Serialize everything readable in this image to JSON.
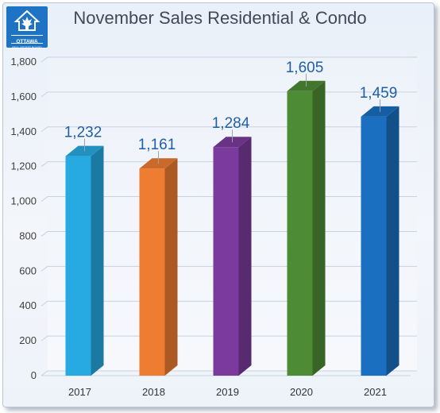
{
  "logo": {
    "wordmark": "OTTAWA",
    "tagline": "REAL ESTATE BOARD",
    "color": "#1e73c5"
  },
  "chart_data": {
    "type": "bar",
    "title": "November Sales Residential & Condo",
    "xlabel": "",
    "ylabel": "",
    "categories": [
      "2017",
      "2018",
      "2019",
      "2020",
      "2021"
    ],
    "values": [
      1232,
      1161,
      1284,
      1605,
      1459
    ],
    "value_labels": [
      "1,232",
      "1,161",
      "1,284",
      "1,605",
      "1,459"
    ],
    "colors": [
      "#27aae1",
      "#ee7d31",
      "#7a3b9c",
      "#4e8b35",
      "#1a6fc0"
    ],
    "ylim": [
      0,
      1800
    ],
    "yticks": [
      0,
      200,
      400,
      600,
      800,
      1000,
      1200,
      1400,
      1600,
      1800
    ],
    "ytick_labels": [
      "0",
      "200",
      "400",
      "600",
      "800",
      "1,000",
      "1,200",
      "1,400",
      "1,600",
      "1,800"
    ],
    "grid": true,
    "style": "3d-column",
    "legend": "none"
  }
}
